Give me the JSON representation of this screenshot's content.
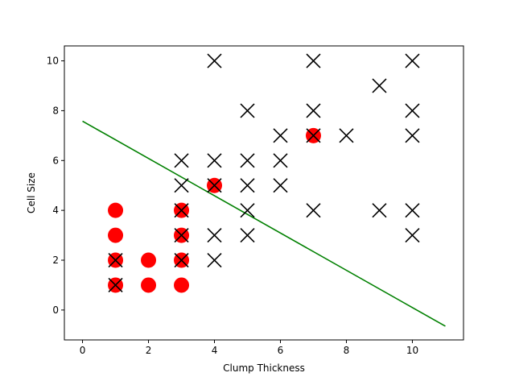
{
  "chart_data": {
    "type": "scatter",
    "title": "",
    "xlabel": "Clump Thickness",
    "ylabel": "Cell Size",
    "xlim": [
      -0.55,
      11.55
    ],
    "ylim": [
      -1.2,
      10.6
    ],
    "xticks": [
      0,
      2,
      4,
      6,
      8,
      10
    ],
    "yticks": [
      0,
      2,
      4,
      6,
      8,
      10
    ],
    "grid": false,
    "legend": "none",
    "series": [
      {
        "marker": "circle",
        "color": "#ff0000",
        "points": [
          [
            1,
            1
          ],
          [
            1,
            2
          ],
          [
            1,
            3
          ],
          [
            1,
            4
          ],
          [
            2,
            1
          ],
          [
            2,
            2
          ],
          [
            3,
            1
          ],
          [
            3,
            2
          ],
          [
            3,
            3
          ],
          [
            3,
            4
          ],
          [
            4,
            5
          ],
          [
            7,
            7
          ]
        ]
      },
      {
        "marker": "x",
        "color": "#000000",
        "points": [
          [
            1,
            1
          ],
          [
            1,
            2
          ],
          [
            3,
            2
          ],
          [
            3,
            3
          ],
          [
            3,
            4
          ],
          [
            3,
            5
          ],
          [
            3,
            6
          ],
          [
            4,
            2
          ],
          [
            4,
            3
          ],
          [
            4,
            5
          ],
          [
            4,
            6
          ],
          [
            4,
            10
          ],
          [
            5,
            3
          ],
          [
            5,
            4
          ],
          [
            5,
            5
          ],
          [
            5,
            6
          ],
          [
            5,
            8
          ],
          [
            6,
            5
          ],
          [
            6,
            6
          ],
          [
            6,
            7
          ],
          [
            7,
            4
          ],
          [
            7,
            7
          ],
          [
            7,
            8
          ],
          [
            7,
            10
          ],
          [
            8,
            7
          ],
          [
            9,
            4
          ],
          [
            9,
            9
          ],
          [
            10,
            3
          ],
          [
            10,
            4
          ],
          [
            10,
            7
          ],
          [
            10,
            8
          ],
          [
            10,
            10
          ]
        ]
      }
    ],
    "lines": [
      {
        "color": "#008000",
        "points": [
          [
            0,
            7.58
          ],
          [
            11,
            -0.65
          ]
        ]
      }
    ]
  }
}
